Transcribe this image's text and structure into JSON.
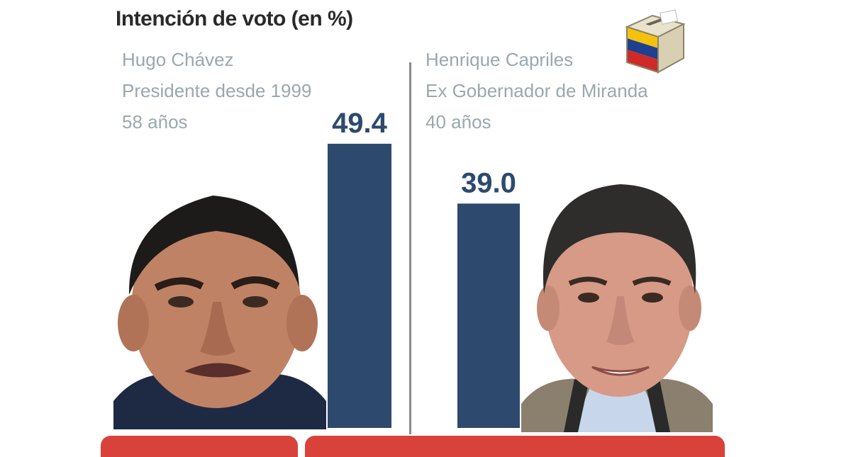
{
  "chart_data": {
    "type": "bar",
    "title": "Intención de voto (en %)",
    "categories": [
      "Hugo Chávez",
      "Henrique Capriles"
    ],
    "values": [
      49.4,
      39.0
    ],
    "value_labels": [
      "49.4",
      "39.0"
    ],
    "ylim": [
      0,
      100
    ],
    "bar_color": "#2d4a6e",
    "grid": false
  },
  "candidates": [
    {
      "name": "Hugo Chávez",
      "role": "Presidente desde 1999",
      "age": "58 años"
    },
    {
      "name": "Henrique Capriles",
      "role": "Ex Gobernador de Miranda",
      "age": "40 años"
    }
  ],
  "icons": {
    "ballot": "ballot-box-icon"
  },
  "colors": {
    "bars": "#2d4a6e",
    "band": "#d9423a",
    "info_text": "#9aa8ae",
    "venezuela_flag": [
      "#f4c20d",
      "#1f3f8f",
      "#cf2a27"
    ]
  }
}
